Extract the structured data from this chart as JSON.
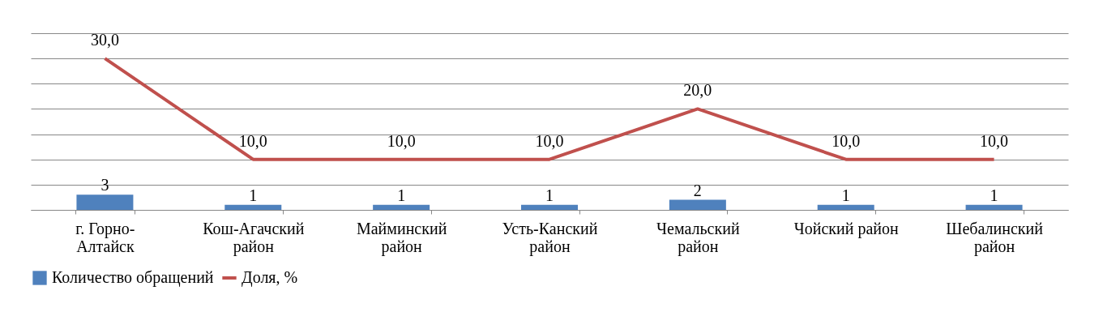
{
  "chart_data": {
    "type": "bar",
    "categories": [
      "г. Горно-Алтайск",
      "Кош-Агачский район",
      "Майминский район",
      "Усть-Канский район",
      "Чемальский район",
      "Чойский район",
      "Шебалинский район"
    ],
    "series": [
      {
        "name": "Количество обращений",
        "color": "#4f81bd",
        "values": [
          3,
          1,
          1,
          1,
          2,
          1,
          1
        ]
      },
      {
        "name": "Доля, %",
        "type": "line",
        "color": "#c0504d",
        "values": [
          30.0,
          10.0,
          10.0,
          10.0,
          20.0,
          10.0,
          10.0
        ],
        "value_labels": [
          "30,0",
          "10,0",
          "10,0",
          "10,0",
          "20,0",
          "10,0",
          "10,0"
        ]
      }
    ],
    "data_labels": true,
    "ylim": [
      0,
      35
    ],
    "yticks": [
      {
        "value": 0,
        "label": null
      },
      {
        "value": 5,
        "label": null
      },
      {
        "value": 10,
        "label": null
      },
      {
        "value": 15,
        "label": null
      },
      {
        "value": 20,
        "label": null
      },
      {
        "value": 25,
        "label": null
      },
      {
        "value": 30,
        "label": null
      },
      {
        "value": 35,
        "label": null
      }
    ],
    "tick_labels": "x",
    "grid": "y",
    "legend": "bottom",
    "marker": "none",
    "line_style": "solid"
  }
}
